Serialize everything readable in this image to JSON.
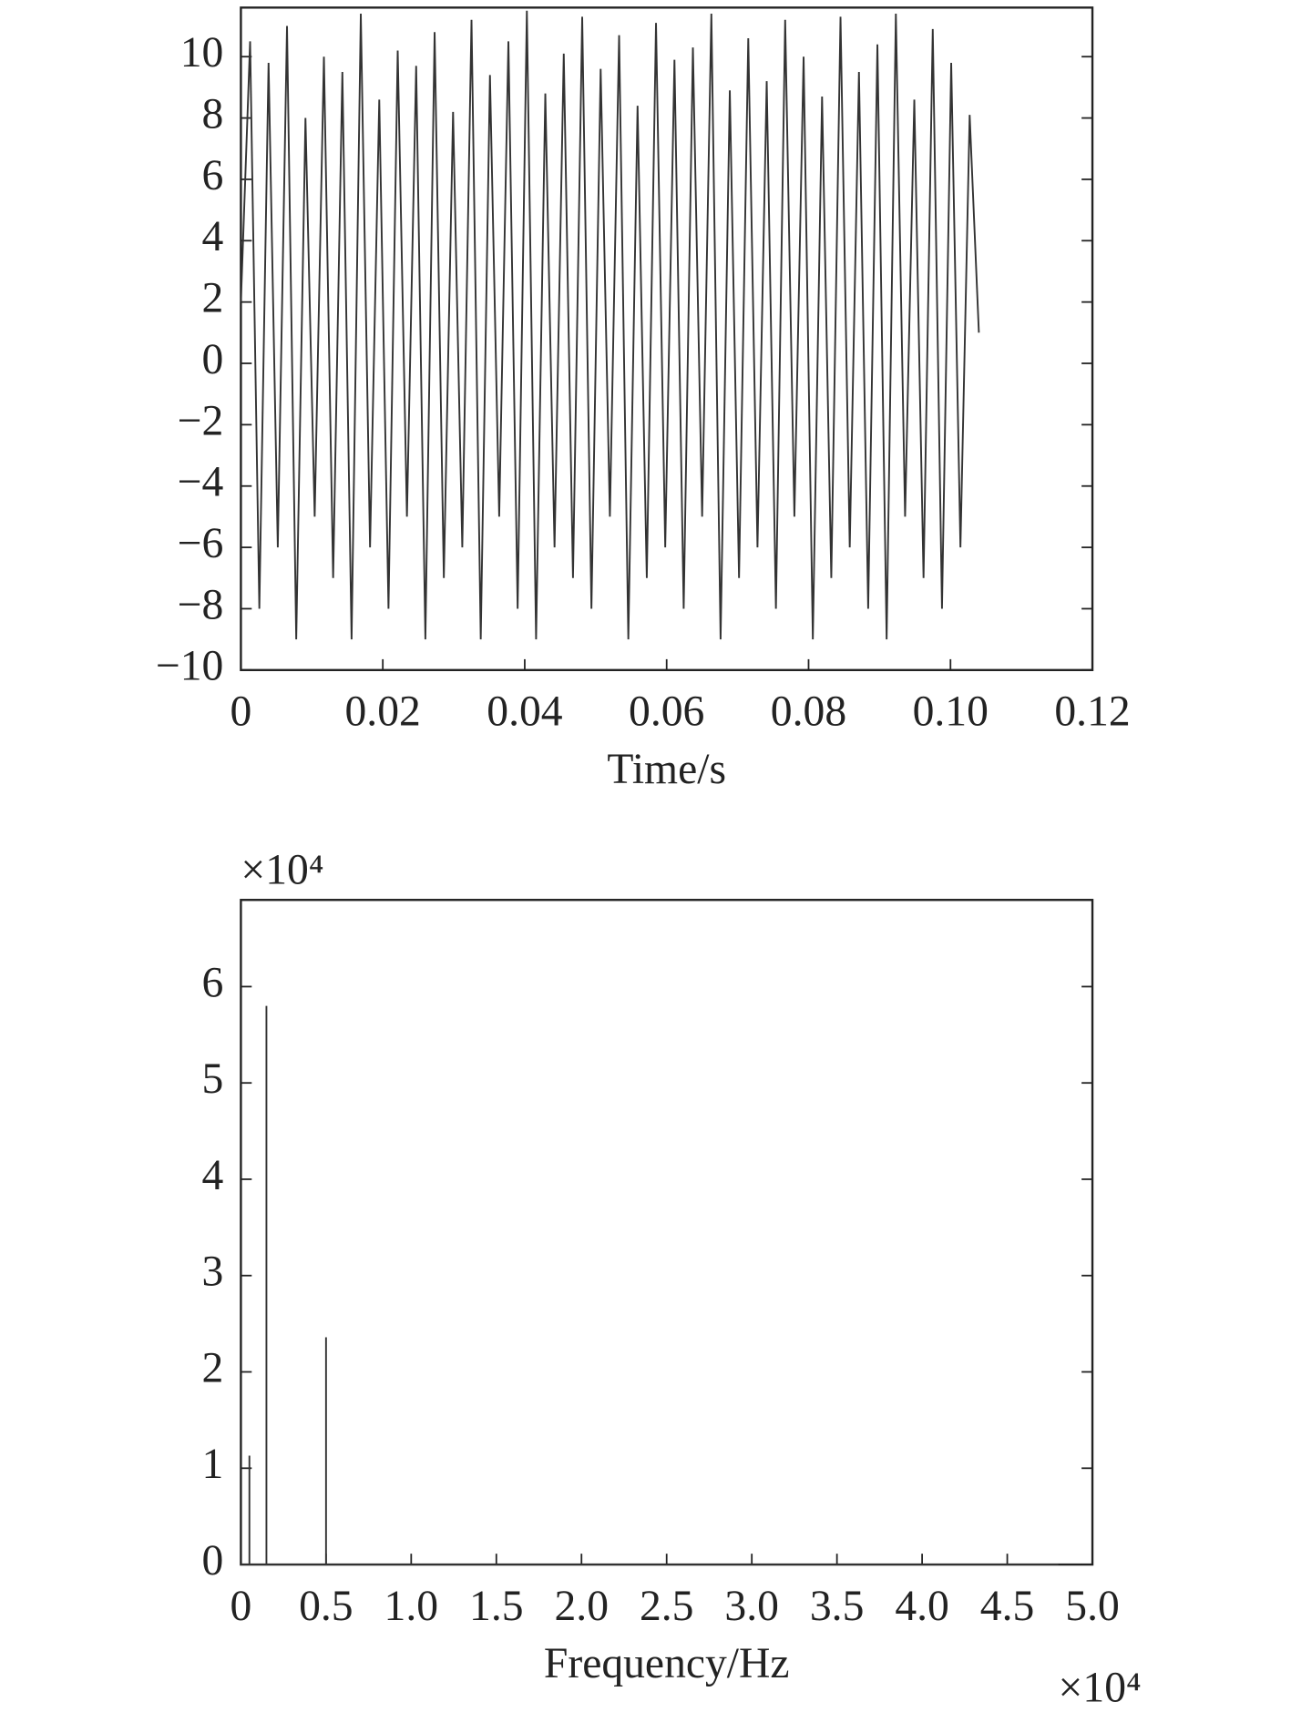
{
  "chart_data": [
    {
      "type": "line",
      "xlabel": "Time/s",
      "x": [
        0,
        0.0013,
        0.0026,
        0.0039,
        0.0052,
        0.0065,
        0.0078,
        0.0091,
        0.0104,
        0.0117,
        0.013,
        0.0143,
        0.0156,
        0.0169,
        0.0182,
        0.0195,
        0.0208,
        0.0221,
        0.0234,
        0.0247,
        0.026,
        0.0273,
        0.0286,
        0.0299,
        0.0312,
        0.0325,
        0.0338,
        0.0351,
        0.0364,
        0.0377,
        0.039,
        0.0403,
        0.0416,
        0.0429,
        0.0442,
        0.0455,
        0.0468,
        0.0481,
        0.0494,
        0.0507,
        0.052,
        0.0533,
        0.0546,
        0.0559,
        0.0572,
        0.0585,
        0.0598,
        0.0611,
        0.0624,
        0.0637,
        0.065,
        0.0663,
        0.0676,
        0.0689,
        0.0702,
        0.0715,
        0.0728,
        0.0741,
        0.0754,
        0.0767,
        0.078,
        0.0793,
        0.0806,
        0.0819,
        0.0832,
        0.0845,
        0.0858,
        0.0871,
        0.0884,
        0.0897,
        0.091,
        0.0923,
        0.0936,
        0.0949,
        0.0962,
        0.0975,
        0.0988,
        0.1001,
        0.1014,
        0.1027,
        0.104
      ],
      "series": [
        {
          "color": "#333333",
          "values": [
            2,
            10.5,
            -8,
            9.8,
            -6,
            11,
            -9,
            8,
            -5,
            10,
            -7,
            9.5,
            -9,
            11.4,
            -6,
            8.6,
            -8,
            10.2,
            -5,
            9.7,
            -9,
            10.8,
            -7,
            8.2,
            -6,
            11.2,
            -9,
            9.4,
            -5,
            10.5,
            -8,
            11.5,
            -9,
            8.8,
            -6,
            10.1,
            -7,
            11.3,
            -8,
            9.6,
            -5,
            10.7,
            -9,
            8.4,
            -7,
            11.1,
            -6,
            9.9,
            -8,
            10.3,
            -5,
            11.4,
            -9,
            8.9,
            -7,
            10.6,
            -6,
            9.2,
            -8,
            11.2,
            -5,
            10,
            -9,
            8.7,
            -7,
            11.3,
            -6,
            9.5,
            -8,
            10.4,
            -9,
            11.4,
            -5,
            8.6,
            -7,
            10.9,
            -8,
            9.8,
            -6,
            8.1,
            1
          ]
        }
      ],
      "xlim": [
        0,
        0.12
      ],
      "xticks": [
        0,
        0.02,
        0.04,
        0.06,
        0.08,
        {
          "value": 0.1,
          "label": "0.10"
        },
        0.12
      ],
      "ylim": [
        -10,
        11.6
      ],
      "yticks": [
        {
          "value": -10,
          "label": "−10"
        },
        {
          "value": -8,
          "label": "−8"
        },
        {
          "value": -6,
          "label": "−6"
        },
        {
          "value": -4,
          "label": "−4"
        },
        {
          "value": -2,
          "label": "−2"
        },
        0,
        2,
        4,
        6,
        8,
        10
      ]
    },
    {
      "type": "line",
      "xlabel": "Frequency/Hz",
      "x_offset_label": "×10⁴",
      "y_offset_label": "×10⁴",
      "x": [
        0,
        0.05,
        0.05,
        0.05,
        0.15,
        0.15,
        0.15,
        0.5,
        0.5,
        0.5,
        4.8
      ],
      "series": [
        {
          "color": "#333333",
          "values": [
            0,
            0,
            1.13,
            0,
            0,
            5.8,
            0,
            0,
            2.36,
            0,
            0
          ]
        }
      ],
      "xlim": [
        0,
        5
      ],
      "xticks": [
        0,
        0.5,
        {
          "value": 1,
          "label": "1.0"
        },
        1.5,
        {
          "value": 2,
          "label": "2.0"
        },
        2.5,
        {
          "value": 3,
          "label": "3.0"
        },
        3.5,
        {
          "value": 4,
          "label": "4.0"
        },
        4.5,
        {
          "value": 5,
          "label": "5.0"
        }
      ],
      "ylim": [
        0,
        6.9
      ],
      "yticks": [
        0,
        1,
        2,
        3,
        4,
        5,
        6
      ]
    }
  ]
}
